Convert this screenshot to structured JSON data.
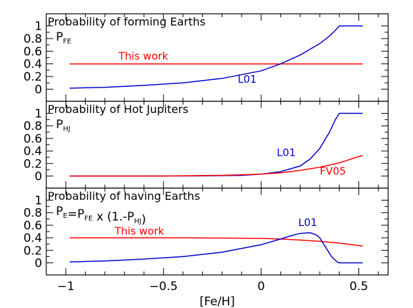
{
  "chart_data": [
    {
      "type": "line",
      "title": "Probability of forming Earths",
      "subtitle": "P_FE",
      "xlim": [
        -1.1,
        0.65
      ],
      "ylim": [
        -0.05,
        1.05
      ],
      "yticks": [
        0,
        0.2,
        0.4,
        0.6,
        0.8,
        1
      ],
      "yticklabels": [
        "0",
        "0.2",
        "0.4",
        "0.6",
        "0.8",
        "1"
      ],
      "grid": false,
      "series": [
        {
          "name": "This work",
          "color": "#ff0000",
          "x": [
            -0.98,
            0.52
          ],
          "y": [
            0.4,
            0.4
          ]
        },
        {
          "name": "L01",
          "color": "#0000cc",
          "x": [
            -0.98,
            -0.8,
            -0.6,
            -0.4,
            -0.2,
            0.0,
            0.1,
            0.2,
            0.3,
            0.35,
            0.38,
            0.4,
            0.52
          ],
          "y": [
            0.015,
            0.03,
            0.06,
            0.1,
            0.17,
            0.29,
            0.4,
            0.54,
            0.72,
            0.84,
            0.93,
            1.0,
            1.0
          ]
        }
      ],
      "series_labels": [
        {
          "text": "This work",
          "color": "#ff0000",
          "x": -0.73,
          "y": 0.47
        },
        {
          "text": "L01",
          "color": "#0000cc",
          "x": -0.12,
          "y": 0.1
        }
      ]
    },
    {
      "type": "line",
      "title": "Probability of Hot Jupiters",
      "subtitle": "P_HJ",
      "xlim": [
        -1.1,
        0.65
      ],
      "ylim": [
        -0.05,
        1.05
      ],
      "yticks": [
        0,
        0.2,
        0.4,
        0.6,
        0.8,
        1
      ],
      "yticklabels": [
        "0",
        "0.2",
        "0.4",
        "0.6",
        "0.8",
        "1"
      ],
      "grid": false,
      "series": [
        {
          "name": "L01",
          "color": "#0000cc",
          "x": [
            -0.98,
            -0.6,
            -0.3,
            -0.1,
            0.0,
            0.1,
            0.2,
            0.25,
            0.3,
            0.35,
            0.38,
            0.4,
            0.52
          ],
          "y": [
            0.0,
            0.0,
            0.003,
            0.01,
            0.03,
            0.07,
            0.16,
            0.27,
            0.44,
            0.7,
            0.9,
            1.0,
            1.0
          ]
        },
        {
          "name": "FV05",
          "color": "#ff0000",
          "x": [
            -0.98,
            -0.5,
            -0.2,
            0.0,
            0.1,
            0.2,
            0.3,
            0.4,
            0.45,
            0.52
          ],
          "y": [
            0.0,
            0.0,
            0.01,
            0.03,
            0.05,
            0.09,
            0.14,
            0.21,
            0.26,
            0.33
          ]
        }
      ],
      "series_labels": [
        {
          "text": "L01",
          "color": "#0000cc",
          "x": 0.08,
          "y": 0.32
        },
        {
          "text": "FV05",
          "color": "#ff0000",
          "x": 0.3,
          "y": 0.02
        }
      ]
    },
    {
      "type": "line",
      "title": "Probability of having Earths",
      "subtitle": "P_E=P_FE x (1.-P_HJ)",
      "xlim": [
        -1.1,
        0.65
      ],
      "ylim": [
        -0.05,
        1.05
      ],
      "yticks": [
        0,
        0.2,
        0.4,
        0.6,
        0.8,
        1
      ],
      "yticklabels": [
        "0",
        "0.2",
        "0.4",
        "0.6",
        "0.8",
        "1"
      ],
      "xticks": [
        -1,
        -0.5,
        0,
        0.5
      ],
      "xticklabels": [
        "−1",
        "−0.5",
        "0",
        "0.5"
      ],
      "xlabel": "[Fe/H]",
      "grid": false,
      "series": [
        {
          "name": "This work",
          "color": "#ff0000",
          "x": [
            -0.98,
            -0.5,
            -0.2,
            0.0,
            0.1,
            0.2,
            0.3,
            0.4,
            0.52
          ],
          "y": [
            0.4,
            0.4,
            0.395,
            0.39,
            0.38,
            0.364,
            0.344,
            0.316,
            0.268
          ]
        },
        {
          "name": "L01",
          "color": "#0000cc",
          "x": [
            -0.98,
            -0.8,
            -0.6,
            -0.4,
            -0.2,
            0.0,
            0.1,
            0.15,
            0.2,
            0.25,
            0.28,
            0.3,
            0.33,
            0.36,
            0.39,
            0.4,
            0.52
          ],
          "y": [
            0.015,
            0.03,
            0.06,
            0.1,
            0.17,
            0.29,
            0.38,
            0.43,
            0.47,
            0.48,
            0.45,
            0.4,
            0.25,
            0.1,
            0.01,
            0.0,
            0.0
          ]
        }
      ],
      "series_labels": [
        {
          "text": "This work",
          "color": "#ff0000",
          "x": -0.75,
          "y": 0.45
        },
        {
          "text": "L01",
          "color": "#0000cc",
          "x": 0.19,
          "y": 0.59
        }
      ]
    }
  ]
}
